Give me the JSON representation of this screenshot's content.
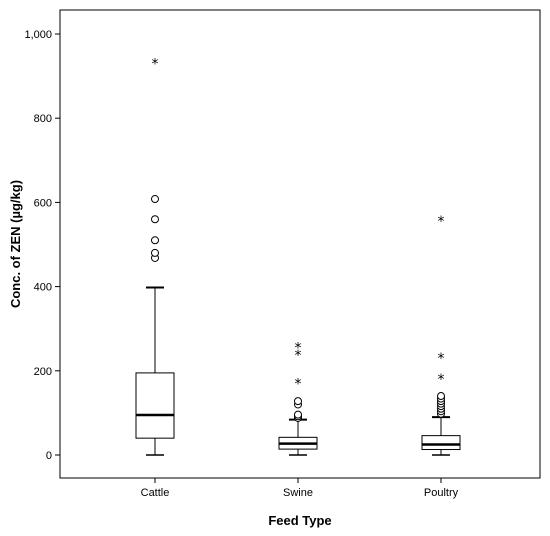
{
  "chart_data": {
    "type": "boxplot",
    "xlabel": "Feed Type",
    "ylabel": "Conc. of ZEN (µg/kg)",
    "ylim": [
      -55,
      1050
    ],
    "yticks": [
      0,
      200,
      400,
      600,
      800,
      1000
    ],
    "ytick_labels": [
      "0",
      "200",
      "400",
      "600",
      "800",
      "1,000"
    ],
    "categories": [
      "Cattle",
      "Swine",
      "Poultry"
    ],
    "boxes": [
      {
        "category": "Cattle",
        "whisker_low": 0,
        "q1": 40,
        "median": 95,
        "q3": 195,
        "whisker_high": 398,
        "outliers": [
          468,
          480,
          510,
          560,
          608
        ],
        "extremes": [
          932
        ]
      },
      {
        "category": "Swine",
        "whisker_low": 0,
        "q1": 14,
        "median": 27,
        "q3": 42,
        "whisker_high": 84,
        "outliers": [
          88,
          92,
          96,
          120,
          128
        ],
        "extremes": [
          172,
          240,
          258
        ]
      },
      {
        "category": "Poultry",
        "whisker_low": 0,
        "q1": 13,
        "median": 25,
        "q3": 46,
        "whisker_high": 90,
        "outliers": [
          98,
          104,
          110,
          116,
          122,
          128,
          134,
          140
        ],
        "extremes": [
          183,
          233,
          558
        ]
      }
    ],
    "outlier_marker": "o",
    "extreme_marker": "*",
    "grid": false,
    "legend": "none"
  }
}
